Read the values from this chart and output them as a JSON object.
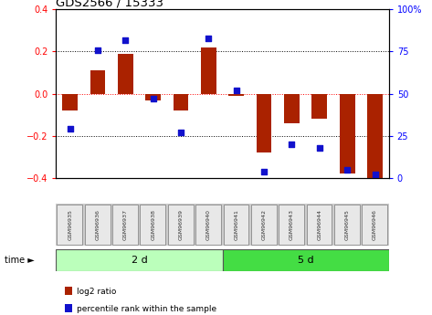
{
  "title": "GDS2566 / 15333",
  "samples": [
    "GSM96935",
    "GSM96936",
    "GSM96937",
    "GSM96938",
    "GSM96939",
    "GSM96940",
    "GSM96941",
    "GSM96942",
    "GSM96943",
    "GSM96944",
    "GSM96945",
    "GSM96946"
  ],
  "log2_ratio": [
    -0.08,
    0.11,
    0.19,
    -0.03,
    -0.08,
    0.22,
    -0.01,
    -0.28,
    -0.14,
    -0.12,
    -0.38,
    -0.4
  ],
  "percentile_rank": [
    29,
    76,
    82,
    47,
    27,
    83,
    52,
    4,
    20,
    18,
    5,
    2
  ],
  "bar_color": "#aa2200",
  "dot_color": "#1111cc",
  "groups": [
    {
      "label": "2 d",
      "start": 0,
      "end": 6,
      "color": "#bbffbb"
    },
    {
      "label": "5 d",
      "start": 6,
      "end": 12,
      "color": "#44dd44"
    }
  ],
  "ylim": [
    -0.4,
    0.4
  ],
  "yticks_left": [
    -0.4,
    -0.2,
    0.0,
    0.2,
    0.4
  ],
  "yticks_right_vals": [
    0,
    25,
    50,
    75,
    100
  ],
  "yticks_right_labels": [
    "0",
    "25",
    "50",
    "75",
    "100%"
  ],
  "background_color": "#ffffff",
  "legend_labels": [
    "log2 ratio",
    "percentile rank within the sample"
  ],
  "time_label": "time",
  "bar_width": 0.55
}
